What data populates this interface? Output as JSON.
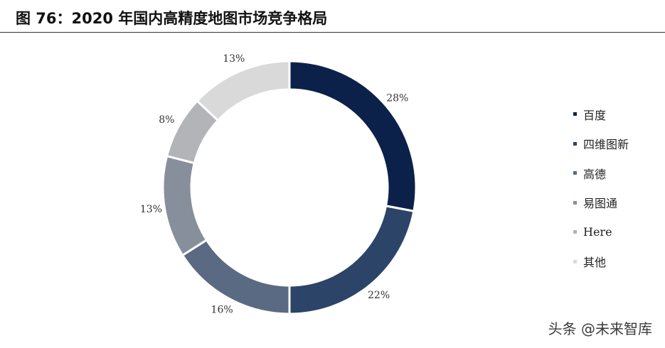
{
  "header": {
    "title": "图 76：2020 年国内高精度地图市场竞争格局"
  },
  "chart_data": {
    "type": "pie",
    "style": "donut",
    "categories": [
      "百度",
      "四维图新",
      "高德",
      "易图通",
      "Here",
      "其他"
    ],
    "values": [
      28,
      22,
      16,
      13,
      8,
      13
    ],
    "labels": [
      "28%",
      "22%",
      "16%",
      "13%",
      "8%",
      "13%"
    ],
    "colors": [
      "#0c2149",
      "#2c4468",
      "#5a6a82",
      "#878f9d",
      "#b2b4b8",
      "#d9d9d9"
    ],
    "legend_position": "right",
    "start_angle": "12 o'clock",
    "direction": "clockwise"
  },
  "watermark": "头条 @未来智库"
}
